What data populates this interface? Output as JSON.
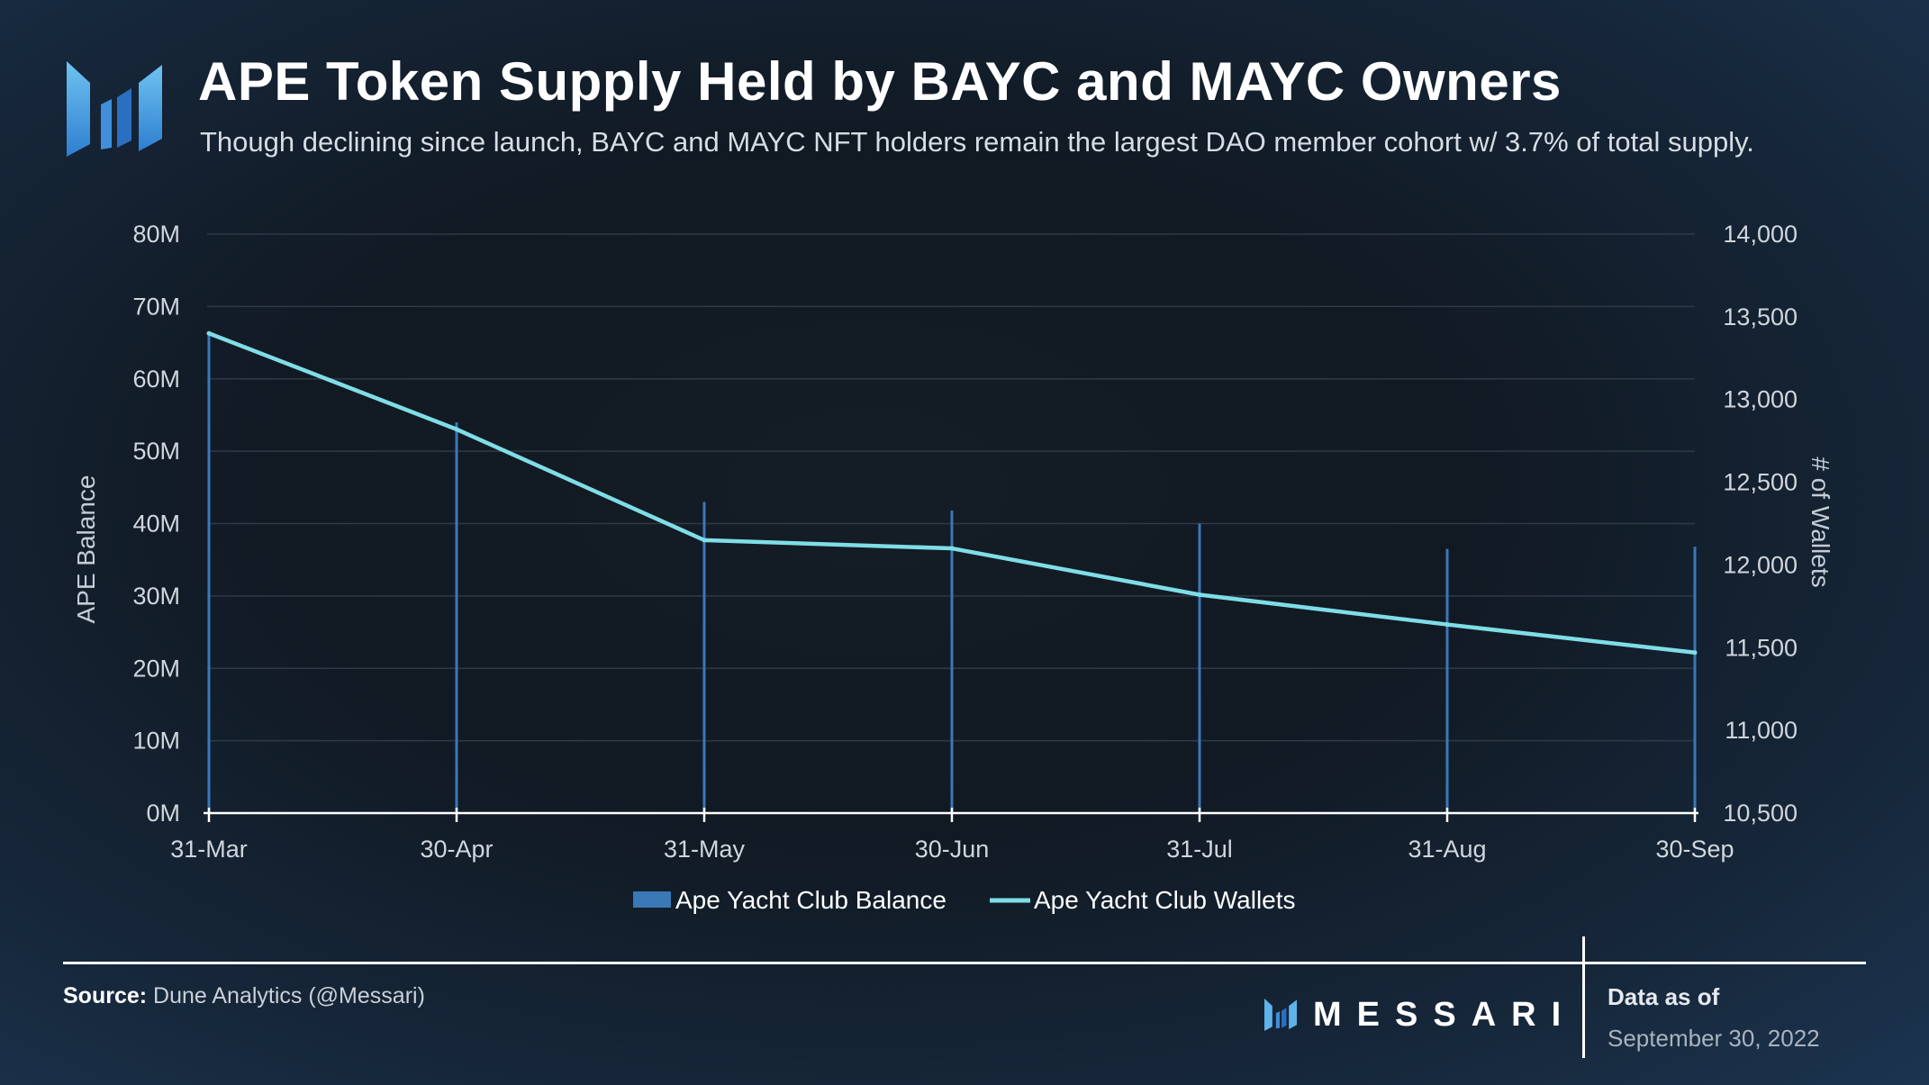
{
  "header": {
    "title": "APE Token Supply Held by BAYC and MAYC Owners",
    "subtitle": "Though declining since launch, BAYC and MAYC NFT holders remain the largest DAO member cohort w/ 3.7% of total supply."
  },
  "footer": {
    "source_label": "Source:",
    "source_text": " Dune Analytics (@Messari)",
    "brand": "MESSARI",
    "as_of_label": "Data as of",
    "as_of_date": "September 30, 2022"
  },
  "colors": {
    "bar": "#3a78b8",
    "line": "#7fdde6",
    "grid": "#2f3a47",
    "axis": "#ffffff"
  },
  "chart_data": {
    "type": "bar",
    "title": "APE Token Supply Held by BAYC and MAYC Owners",
    "categories": [
      "31-Mar",
      "30-Apr",
      "31-May",
      "30-Jun",
      "31-Jul",
      "31-Aug",
      "30-Sep"
    ],
    "ylabel": "APE Balance",
    "y2label": "# of Wallets",
    "ylim": [
      0,
      80000000
    ],
    "y2lim": [
      10500,
      14000
    ],
    "yticks": [
      0,
      10000000,
      20000000,
      30000000,
      40000000,
      50000000,
      60000000,
      70000000,
      80000000
    ],
    "ytick_labels": [
      "0M",
      "10M",
      "20M",
      "30M",
      "40M",
      "50M",
      "60M",
      "70M",
      "80M"
    ],
    "y2ticks": [
      10500,
      11000,
      11500,
      12000,
      12500,
      13000,
      13500,
      14000
    ],
    "y2tick_labels": [
      "10,500",
      "11,000",
      "11,500",
      "12,000",
      "12,500",
      "13,000",
      "13,500",
      "14,000"
    ],
    "grid": true,
    "legend_position": "bottom-center",
    "series": [
      {
        "name": "Ape Yacht Club Balance",
        "type": "bar",
        "axis": "left",
        "values": [
          66000000,
          54000000,
          43000000,
          41800000,
          40000000,
          36500000,
          36800000
        ]
      },
      {
        "name": "Ape Yacht Club Wallets",
        "type": "line",
        "axis": "right",
        "values": [
          13400,
          12820,
          12150,
          12100,
          11820,
          11640,
          11470
        ]
      }
    ]
  }
}
